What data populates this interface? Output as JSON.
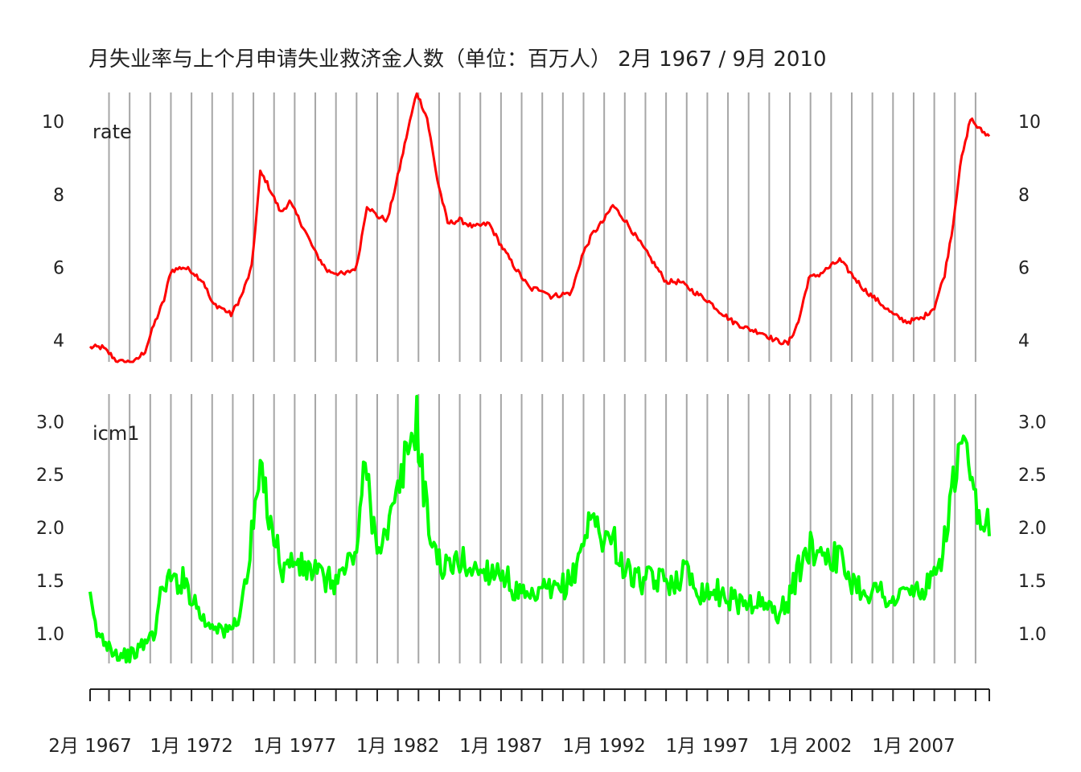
{
  "title": "月失业率与上个月申请失业救济金人数（单位：百万人）  2月 1967 / 9月 2010",
  "colors": {
    "rate": "#ff0000",
    "icm1": "#00ff00",
    "grid": "#a6a6a6",
    "text": "#222222"
  },
  "chart_data": {
    "type": "line",
    "layout": "two stacked panels sharing a time x-axis, y tick labels on both sides",
    "x_range": [
      "1967-02",
      "2010-09"
    ],
    "x_tick_labels": [
      "2月 1967",
      "1月 1972",
      "1月 1977",
      "1月 1982",
      "1月 1987",
      "1月 1992",
      "1月 1997",
      "1月 2002",
      "1月 2007"
    ],
    "grid": true,
    "series": [
      {
        "name": "rate",
        "color": "#ff0000",
        "y_ticks": [
          "4",
          "6",
          "8",
          "10"
        ],
        "ylim": [
          3.4,
          10.8
        ],
        "points": [
          [
            "1967-02",
            3.8
          ],
          [
            "1967-09",
            3.8
          ],
          [
            "1968-02",
            3.6
          ],
          [
            "1968-06",
            3.4
          ],
          [
            "1969-04",
            3.4
          ],
          [
            "1969-10",
            3.7
          ],
          [
            "1970-03",
            4.4
          ],
          [
            "1970-09",
            5.1
          ],
          [
            "1971-01",
            5.9
          ],
          [
            "1971-08",
            6.0
          ],
          [
            "1972-01",
            5.9
          ],
          [
            "1972-08",
            5.6
          ],
          [
            "1973-01",
            5.0
          ],
          [
            "1973-06",
            4.9
          ],
          [
            "1973-12",
            4.7
          ],
          [
            "1974-06",
            5.2
          ],
          [
            "1974-12",
            6.0
          ],
          [
            "1975-05",
            8.6
          ],
          [
            "1975-08",
            8.4
          ],
          [
            "1976-05",
            7.5
          ],
          [
            "1976-10",
            7.8
          ],
          [
            "1977-06",
            7.1
          ],
          [
            "1978-01",
            6.4
          ],
          [
            "1978-08",
            5.9
          ],
          [
            "1979-06",
            5.8
          ],
          [
            "1980-01",
            6.0
          ],
          [
            "1980-07",
            7.7
          ],
          [
            "1981-01",
            7.4
          ],
          [
            "1981-07",
            7.3
          ],
          [
            "1982-01",
            8.5
          ],
          [
            "1982-07",
            9.8
          ],
          [
            "1982-12",
            10.8
          ],
          [
            "1983-06",
            10.1
          ],
          [
            "1983-12",
            8.4
          ],
          [
            "1984-06",
            7.2
          ],
          [
            "1985-01",
            7.3
          ],
          [
            "1985-09",
            7.1
          ],
          [
            "1986-06",
            7.2
          ],
          [
            "1987-01",
            6.6
          ],
          [
            "1987-09",
            6.0
          ],
          [
            "1988-06",
            5.4
          ],
          [
            "1989-01",
            5.4
          ],
          [
            "1989-06",
            5.2
          ],
          [
            "1990-06",
            5.3
          ],
          [
            "1990-12",
            6.3
          ],
          [
            "1991-06",
            6.9
          ],
          [
            "1992-01",
            7.3
          ],
          [
            "1992-06",
            7.7
          ],
          [
            "1993-01",
            7.3
          ],
          [
            "1993-08",
            6.8
          ],
          [
            "1994-06",
            6.1
          ],
          [
            "1995-01",
            5.6
          ],
          [
            "1995-09",
            5.6
          ],
          [
            "1996-06",
            5.3
          ],
          [
            "1997-01",
            5.1
          ],
          [
            "1997-08",
            4.8
          ],
          [
            "1998-04",
            4.5
          ],
          [
            "1999-01",
            4.3
          ],
          [
            "1999-09",
            4.2
          ],
          [
            "2000-04",
            4.0
          ],
          [
            "2000-12",
            3.9
          ],
          [
            "2001-06",
            4.5
          ],
          [
            "2001-12",
            5.7
          ],
          [
            "2002-06",
            5.8
          ],
          [
            "2003-06",
            6.2
          ],
          [
            "2004-01",
            5.8
          ],
          [
            "2004-08",
            5.4
          ],
          [
            "2005-06",
            5.0
          ],
          [
            "2006-01",
            4.7
          ],
          [
            "2006-09",
            4.5
          ],
          [
            "2007-06",
            4.6
          ],
          [
            "2008-01",
            4.9
          ],
          [
            "2008-07",
            5.8
          ],
          [
            "2008-12",
            7.2
          ],
          [
            "2009-04",
            8.8
          ],
          [
            "2009-08",
            9.6
          ],
          [
            "2009-10",
            10.1
          ],
          [
            "2010-03",
            9.8
          ],
          [
            "2010-09",
            9.6
          ]
        ]
      },
      {
        "name": "icm1",
        "color": "#00ff00",
        "y_ticks": [
          "1.0",
          "1.5",
          "2.0",
          "2.5",
          "3.0"
        ],
        "ylim": [
          0.72,
          3.26
        ],
        "points": [
          [
            "1967-02",
            1.3
          ],
          [
            "1967-06",
            1.0
          ],
          [
            "1968-01",
            0.9
          ],
          [
            "1968-06",
            0.8
          ],
          [
            "1969-03",
            0.8
          ],
          [
            "1969-09",
            0.9
          ],
          [
            "1970-03",
            1.0
          ],
          [
            "1970-09",
            1.5
          ],
          [
            "1971-03",
            1.5
          ],
          [
            "1971-09",
            1.5
          ],
          [
            "1972-03",
            1.3
          ],
          [
            "1972-09",
            1.1
          ],
          [
            "1973-03",
            1.1
          ],
          [
            "1973-09",
            1.0
          ],
          [
            "1974-03",
            1.1
          ],
          [
            "1974-09",
            1.5
          ],
          [
            "1975-03",
            2.3
          ],
          [
            "1975-06",
            2.5
          ],
          [
            "1975-12",
            2.0
          ],
          [
            "1976-06",
            1.6
          ],
          [
            "1977-01",
            1.7
          ],
          [
            "1977-06",
            1.6
          ],
          [
            "1978-01",
            1.6
          ],
          [
            "1978-06",
            1.5
          ],
          [
            "1979-01",
            1.5
          ],
          [
            "1979-06",
            1.6
          ],
          [
            "1980-01",
            1.8
          ],
          [
            "1980-06",
            2.6
          ],
          [
            "1980-12",
            1.9
          ],
          [
            "1981-06",
            1.9
          ],
          [
            "1982-01",
            2.3
          ],
          [
            "1982-06",
            2.7
          ],
          [
            "1982-12",
            3.0
          ],
          [
            "1983-06",
            2.1
          ],
          [
            "1983-12",
            1.7
          ],
          [
            "1984-06",
            1.6
          ],
          [
            "1985-01",
            1.7
          ],
          [
            "1985-09",
            1.6
          ],
          [
            "1986-06",
            1.6
          ],
          [
            "1987-01",
            1.6
          ],
          [
            "1987-09",
            1.4
          ],
          [
            "1988-06",
            1.3
          ],
          [
            "1989-01",
            1.4
          ],
          [
            "1989-09",
            1.4
          ],
          [
            "1990-06",
            1.5
          ],
          [
            "1991-01",
            1.9
          ],
          [
            "1991-06",
            2.1
          ],
          [
            "1992-01",
            1.9
          ],
          [
            "1992-06",
            1.9
          ],
          [
            "1993-01",
            1.6
          ],
          [
            "1993-09",
            1.5
          ],
          [
            "1994-06",
            1.5
          ],
          [
            "1995-06",
            1.5
          ],
          [
            "1996-01",
            1.6
          ],
          [
            "1996-09",
            1.4
          ],
          [
            "1997-06",
            1.4
          ],
          [
            "1998-06",
            1.3
          ],
          [
            "1999-06",
            1.3
          ],
          [
            "2000-06",
            1.2
          ],
          [
            "2000-12",
            1.3
          ],
          [
            "2001-06",
            1.6
          ],
          [
            "2001-12",
            1.8
          ],
          [
            "2002-06",
            1.8
          ],
          [
            "2003-06",
            1.7
          ],
          [
            "2004-01",
            1.5
          ],
          [
            "2004-09",
            1.4
          ],
          [
            "2005-06",
            1.4
          ],
          [
            "2006-01",
            1.3
          ],
          [
            "2006-09",
            1.4
          ],
          [
            "2007-06",
            1.4
          ],
          [
            "2008-01",
            1.5
          ],
          [
            "2008-06",
            1.8
          ],
          [
            "2008-12",
            2.4
          ],
          [
            "2009-05",
            2.8
          ],
          [
            "2009-09",
            2.5
          ],
          [
            "2010-01",
            2.2
          ],
          [
            "2010-05",
            1.9
          ],
          [
            "2010-09",
            2.1
          ]
        ]
      }
    ]
  }
}
